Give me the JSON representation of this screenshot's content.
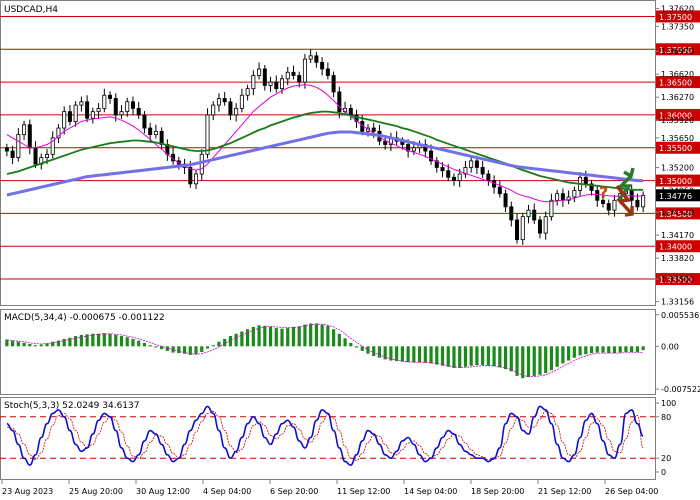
{
  "symbol_label": "USDCAD,H4",
  "macd_label": "MACD(5,34,4) -0.000675 -0.001122",
  "stoch_label": "Stoch(5,3,3) 52.0249 34.6137",
  "current_price": "1.34776",
  "colors": {
    "price_bar": "#000000",
    "level_line": "#cc0000",
    "level_tag_bg": "#cc0000",
    "current_tag_bg": "#000000",
    "ma_fast": "#e000e0",
    "ma_mid": "#1a7a1a",
    "ma_slow": "#7070e8",
    "macd_hist": "#1a8a1a",
    "macd_signal": "#cc00cc",
    "stoch_main": "#1010cc",
    "stoch_signal": "#cc0000",
    "arrow_up": "#2a7a2a",
    "arrow_down": "#a03010",
    "question": "#cc4400"
  },
  "chart_data": [
    {
      "type": "candlestick",
      "title": "USDCAD,H4",
      "ylim": [
        1.3312,
        1.3772
      ],
      "y_ticks": [
        "1.37620",
        "1.37350",
        "1.36970",
        "1.36620",
        "1.36270",
        "1.35920",
        "1.35650",
        "1.35200",
        "1.34850",
        "1.34520",
        "1.34170",
        "1.33820",
        "1.33500",
        "1.33156"
      ],
      "levels": [
        "1.37500",
        "1.37000",
        "1.36500",
        "1.36000",
        "1.35500",
        "1.35000",
        "1.34500",
        "1.34000",
        "1.33500"
      ],
      "current_price": "1.34776",
      "x_labels": [
        "23 Aug 2023",
        "25 Aug 20:00",
        "30 Aug 12:00",
        "4 Sep 04:00",
        "6 Sep 20:00",
        "11 Sep 12:00",
        "14 Sep 04:00",
        "18 Sep 20:00",
        "21 Sep 12:00",
        "26 Sep 04:00"
      ],
      "close": [
        1.3545,
        1.3535,
        1.357,
        1.3585,
        1.355,
        1.3525,
        1.3535,
        1.354,
        1.3565,
        1.358,
        1.3605,
        1.359,
        1.3615,
        1.362,
        1.3595,
        1.3605,
        1.361,
        1.363,
        1.3625,
        1.36,
        1.3605,
        1.362,
        1.361,
        1.36,
        1.358,
        1.357,
        1.3575,
        1.3555,
        1.354,
        1.353,
        1.3525,
        1.352,
        1.3495,
        1.351,
        1.354,
        1.36,
        1.3615,
        1.3625,
        1.362,
        1.36,
        1.361,
        1.363,
        1.364,
        1.366,
        1.367,
        1.3645,
        1.365,
        1.364,
        1.3655,
        1.3665,
        1.366,
        1.365,
        1.3685,
        1.369,
        1.368,
        1.367,
        1.366,
        1.3635,
        1.3605,
        1.361,
        1.36,
        1.359,
        1.3575,
        1.358,
        1.3575,
        1.356,
        1.3555,
        1.3565,
        1.356,
        1.3555,
        1.3545,
        1.355,
        1.3555,
        1.3545,
        1.353,
        1.352,
        1.3515,
        1.3505,
        1.35,
        1.351,
        1.352,
        1.353,
        1.352,
        1.351,
        1.35,
        1.349,
        1.348,
        1.346,
        1.344,
        1.341,
        1.3445,
        1.3455,
        1.344,
        1.342,
        1.3445,
        1.347,
        1.348,
        1.347,
        1.3475,
        1.3485,
        1.3505,
        1.3495,
        1.3485,
        1.347,
        1.3465,
        1.3455,
        1.347,
        1.348,
        1.3485,
        1.347,
        1.346,
        1.34776
      ],
      "series": [
        {
          "name": "",
          "values": [
            1.357,
            1.3565,
            1.356,
            1.3555,
            1.355,
            1.355,
            1.3552,
            1.3555,
            1.356,
            1.3568,
            1.3575,
            1.358,
            1.3585,
            1.359,
            1.3592,
            1.3594,
            1.3595,
            1.3596,
            1.3597,
            1.3595,
            1.3592,
            1.3588,
            1.3583,
            1.3577,
            1.357,
            1.3563,
            1.3555,
            1.3548,
            1.354,
            1.3533,
            1.3527,
            1.3522,
            1.3518,
            1.3516,
            1.3518,
            1.3525,
            1.3535,
            1.3545,
            1.3555,
            1.3565,
            1.3575,
            1.3585,
            1.3595,
            1.3605,
            1.3613,
            1.362,
            1.3627,
            1.3632,
            1.3637,
            1.3641,
            1.3644,
            1.3645,
            1.3646,
            1.3645,
            1.3642,
            1.3637,
            1.363,
            1.3622,
            1.3613,
            1.3605,
            1.3598,
            1.3591,
            1.3584,
            1.3578,
            1.3572,
            1.3566,
            1.3561,
            1.3557,
            1.3553,
            1.3549,
            1.3546,
            1.3543,
            1.354,
            1.3537,
            1.3533,
            1.3529,
            1.3525,
            1.3521,
            1.3517,
            1.3514,
            1.3511,
            1.3508,
            1.3505,
            1.3502,
            1.3499,
            1.3496,
            1.3493,
            1.3489,
            1.3485,
            1.348,
            1.3477,
            1.3475,
            1.3472,
            1.3469,
            1.3468,
            1.3468,
            1.3469,
            1.347,
            1.3471,
            1.3473,
            1.3476,
            1.3478,
            1.3479,
            1.3479,
            1.3478,
            1.3477,
            1.3476,
            1.3476,
            1.3477,
            1.3477,
            1.3476,
            1.3477
          ]
        },
        {
          "name": "",
          "values": [
            1.351,
            1.3512,
            1.3514,
            1.3517,
            1.352,
            1.3523,
            1.3526,
            1.3529,
            1.3532,
            1.3535,
            1.3538,
            1.3541,
            1.3544,
            1.3547,
            1.3549,
            1.3551,
            1.3553,
            1.3555,
            1.3557,
            1.3558,
            1.3559,
            1.356,
            1.3561,
            1.3561,
            1.356,
            1.3559,
            1.3558,
            1.3556,
            1.3554,
            1.3552,
            1.355,
            1.3548,
            1.3546,
            1.3545,
            1.3545,
            1.3546,
            1.3548,
            1.3551,
            1.3554,
            1.3557,
            1.3561,
            1.3565,
            1.3569,
            1.3573,
            1.3577,
            1.358,
            1.3584,
            1.3587,
            1.359,
            1.3593,
            1.3596,
            1.3598,
            1.3601,
            1.3603,
            1.3604,
            1.3605,
            1.3605,
            1.3604,
            1.3603,
            1.3601,
            1.3599,
            1.3597,
            1.3595,
            1.3593,
            1.3591,
            1.3589,
            1.3587,
            1.3585,
            1.3583,
            1.358,
            1.3578,
            1.3575,
            1.3572,
            1.3569,
            1.3566,
            1.3562,
            1.3559,
            1.3556,
            1.3553,
            1.355,
            1.3547,
            1.3544,
            1.3541,
            1.3538,
            1.3535,
            1.3532,
            1.3529,
            1.3526,
            1.3523,
            1.3519,
            1.3516,
            1.3513,
            1.351,
            1.3507,
            1.3505,
            1.3503,
            1.3501,
            1.3499,
            1.3497,
            1.3496,
            1.3495,
            1.3494,
            1.3493,
            1.3492,
            1.3491,
            1.349,
            1.3489,
            1.3488,
            1.3487,
            1.3486,
            1.3486,
            1.3486
          ]
        },
        {
          "name": "",
          "values": [
            1.3478,
            1.348,
            1.3482,
            1.3484,
            1.3486,
            1.3488,
            1.349,
            1.3492,
            1.3494,
            1.3496,
            1.3498,
            1.35,
            1.3502,
            1.3504,
            1.3506,
            1.3507,
            1.3508,
            1.3509,
            1.351,
            1.3511,
            1.3512,
            1.3513,
            1.3514,
            1.3515,
            1.3516,
            1.3517,
            1.3518,
            1.3519,
            1.352,
            1.3521,
            1.3522,
            1.3523,
            1.3524,
            1.3526,
            1.3528,
            1.353,
            1.3532,
            1.3534,
            1.3536,
            1.3538,
            1.354,
            1.3542,
            1.3544,
            1.3546,
            1.3548,
            1.355,
            1.3552,
            1.3554,
            1.3556,
            1.3558,
            1.356,
            1.3562,
            1.3564,
            1.3566,
            1.3568,
            1.357,
            1.3572,
            1.3573,
            1.3574,
            1.3574,
            1.3574,
            1.3573,
            1.3572,
            1.3571,
            1.357,
            1.3569,
            1.3567,
            1.3565,
            1.3563,
            1.3561,
            1.3559,
            1.3557,
            1.3555,
            1.3553,
            1.3551,
            1.3549,
            1.3547,
            1.3545,
            1.3543,
            1.3541,
            1.3539,
            1.3537,
            1.3535,
            1.3533,
            1.3531,
            1.3529,
            1.3527,
            1.3525,
            1.3523,
            1.3521,
            1.352,
            1.3519,
            1.3518,
            1.3517,
            1.3516,
            1.3515,
            1.3514,
            1.3513,
            1.3512,
            1.3511,
            1.351,
            1.3509,
            1.3508,
            1.3507,
            1.3506,
            1.3505,
            1.3504,
            1.3503,
            1.3502,
            1.3501,
            1.35,
            1.35
          ]
        }
      ]
    },
    {
      "type": "bar",
      "title": "MACD(5,34,4) -0.000675 -0.001122",
      "ylim": [
        -0.0082,
        0.0062
      ],
      "y_ticks": [
        "0.005536",
        "0.00",
        "-0.007522"
      ],
      "values": [
        0.0012,
        0.001,
        0.0008,
        0.0006,
        0.0004,
        0.0002,
        0.0003,
        0.0005,
        0.0008,
        0.001,
        0.0013,
        0.0015,
        0.0018,
        0.002,
        0.0021,
        0.0022,
        0.0022,
        0.0023,
        0.0022,
        0.002,
        0.0018,
        0.0016,
        0.0013,
        0.001,
        0.0006,
        0.0002,
        -0.0002,
        -0.0005,
        -0.0008,
        -0.0011,
        -0.0012,
        -0.0013,
        -0.0015,
        -0.0014,
        -0.001,
        -0.0004,
        0.0002,
        0.0008,
        0.0013,
        0.0018,
        0.0022,
        0.0026,
        0.003,
        0.0034,
        0.0037,
        0.0036,
        0.0034,
        0.0032,
        0.0031,
        0.0032,
        0.0034,
        0.0035,
        0.0038,
        0.004,
        0.004,
        0.0038,
        0.0036,
        0.003,
        0.0022,
        0.0014,
        0.0006,
        -0.0002,
        -0.0008,
        -0.0013,
        -0.0017,
        -0.002,
        -0.0023,
        -0.0025,
        -0.0026,
        -0.0027,
        -0.0028,
        -0.0028,
        -0.0028,
        -0.0029,
        -0.003,
        -0.0032,
        -0.0034,
        -0.0036,
        -0.0038,
        -0.0038,
        -0.0036,
        -0.0034,
        -0.0033,
        -0.0033,
        -0.0034,
        -0.0035,
        -0.0037,
        -0.004,
        -0.0044,
        -0.0052,
        -0.0056,
        -0.0054,
        -0.0052,
        -0.005,
        -0.0047,
        -0.0042,
        -0.0036,
        -0.003,
        -0.0025,
        -0.002,
        -0.0016,
        -0.0014,
        -0.0012,
        -0.0011,
        -0.0011,
        -0.0012,
        -0.0012,
        -0.0011,
        -0.001,
        -0.001,
        -0.001,
        -0.000675
      ],
      "series": [
        {
          "name": "",
          "values": [
            0.001,
            0.001,
            0.0009,
            0.0008,
            0.0006,
            0.0005,
            0.0004,
            0.0005,
            0.0006,
            0.0008,
            0.001,
            0.0012,
            0.0014,
            0.0016,
            0.0018,
            0.002,
            0.0021,
            0.0022,
            0.0022,
            0.0021,
            0.002,
            0.0018,
            0.0016,
            0.0013,
            0.001,
            0.0007,
            0.0003,
            0.0,
            -0.0003,
            -0.0006,
            -0.0009,
            -0.0011,
            -0.0013,
            -0.0014,
            -0.0013,
            -0.001,
            -0.0006,
            -0.0001,
            0.0005,
            0.001,
            0.0015,
            0.002,
            0.0024,
            0.0028,
            0.0032,
            0.0034,
            0.0035,
            0.0034,
            0.0033,
            0.0033,
            0.0033,
            0.0034,
            0.0036,
            0.0038,
            0.0039,
            0.0039,
            0.0037,
            0.0034,
            0.0029,
            0.0022,
            0.0014,
            0.0007,
            0.0,
            -0.0006,
            -0.0011,
            -0.0015,
            -0.0019,
            -0.0022,
            -0.0024,
            -0.0026,
            -0.0027,
            -0.0028,
            -0.0028,
            -0.0028,
            -0.0029,
            -0.003,
            -0.0032,
            -0.0034,
            -0.0036,
            -0.0037,
            -0.0037,
            -0.0036,
            -0.0035,
            -0.0034,
            -0.0034,
            -0.0034,
            -0.0036,
            -0.0038,
            -0.0041,
            -0.0046,
            -0.0051,
            -0.0053,
            -0.0053,
            -0.0052,
            -0.005,
            -0.0046,
            -0.0041,
            -0.0035,
            -0.003,
            -0.0025,
            -0.002,
            -0.0017,
            -0.0014,
            -0.0012,
            -0.0012,
            -0.0012,
            -0.0012,
            -0.0012,
            -0.0011,
            -0.0011,
            -0.0011,
            -0.001122
          ]
        }
      ]
    },
    {
      "type": "line",
      "title": "Stoch(5,3,3) 52.0249 34.6137",
      "ylim": [
        0,
        100
      ],
      "y_ticks": [
        "100",
        "80",
        "20",
        "0"
      ],
      "levels": [
        80,
        20
      ],
      "series": [
        {
          "name": "",
          "values": [
            70,
            60,
            40,
            20,
            10,
            25,
            50,
            70,
            85,
            90,
            80,
            60,
            40,
            30,
            35,
            55,
            75,
            85,
            80,
            60,
            35,
            20,
            15,
            25,
            45,
            60,
            55,
            40,
            25,
            15,
            20,
            40,
            60,
            75,
            85,
            95,
            85,
            60,
            35,
            20,
            30,
            50,
            70,
            80,
            70,
            50,
            40,
            55,
            70,
            75,
            65,
            45,
            35,
            50,
            75,
            90,
            85,
            60,
            35,
            15,
            10,
            25,
            45,
            60,
            55,
            40,
            25,
            20,
            30,
            45,
            50,
            40,
            25,
            15,
            20,
            35,
            50,
            60,
            55,
            40,
            30,
            25,
            20,
            20,
            15,
            20,
            35,
            70,
            85,
            80,
            60,
            55,
            80,
            95,
            90,
            70,
            40,
            20,
            15,
            25,
            50,
            75,
            85,
            70,
            45,
            25,
            20,
            40,
            85,
            90,
            70,
            52
          ]
        },
        {
          "name": "",
          "values": [
            65,
            63,
            55,
            40,
            25,
            18,
            28,
            48,
            68,
            82,
            85,
            77,
            60,
            43,
            35,
            40,
            55,
            72,
            80,
            75,
            58,
            38,
            23,
            20,
            28,
            43,
            53,
            52,
            40,
            27,
            20,
            25,
            40,
            58,
            73,
            85,
            88,
            80,
            60,
            38,
            28,
            33,
            50,
            67,
            73,
            67,
            53,
            48,
            55,
            67,
            70,
            62,
            48,
            43,
            53,
            72,
            83,
            78,
            60,
            37,
            20,
            17,
            27,
            43,
            53,
            52,
            40,
            28,
            25,
            32,
            42,
            45,
            38,
            27,
            20,
            25,
            35,
            48,
            55,
            52,
            42,
            32,
            25,
            22,
            18,
            18,
            23,
            42,
            63,
            78,
            75,
            65,
            65,
            77,
            88,
            85,
            67,
            43,
            25,
            20,
            30,
            50,
            70,
            77,
            67,
            47,
            30,
            28,
            48,
            72,
            82,
            35
          ]
        }
      ]
    }
  ]
}
